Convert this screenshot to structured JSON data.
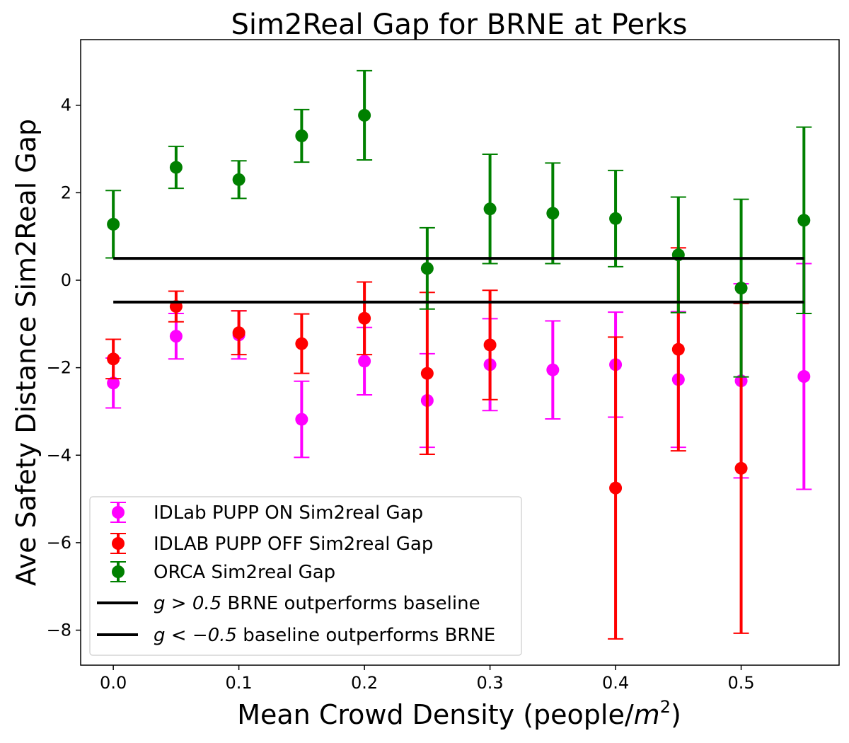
{
  "chart_data": {
    "type": "scatter",
    "title": "Sim2Real Gap for BRNE at Perks",
    "xlabel_main": "Mean Crowd Density (people/",
    "xlabel_unit": "m",
    "xlabel_exp": "2",
    "xlabel_close": ")",
    "ylabel": "Ave Safety Distance Sim2Real Gap",
    "xlim": [
      -0.026,
      0.578
    ],
    "ylim": [
      -8.8,
      5.5
    ],
    "xticks": [
      0.0,
      0.1,
      0.2,
      0.3,
      0.4,
      0.5
    ],
    "xtick_labels": [
      "0.0",
      "0.1",
      "0.2",
      "0.3",
      "0.4",
      "0.5"
    ],
    "yticks": [
      4,
      2,
      0,
      -2,
      -4,
      -6,
      -8
    ],
    "ytick_labels": [
      "4",
      "2",
      "0",
      "−2",
      "−4",
      "−6",
      "−8"
    ],
    "x": [
      0.0,
      0.05,
      0.1,
      0.15,
      0.2,
      0.25,
      0.3,
      0.35,
      0.4,
      0.45,
      0.5,
      0.55
    ],
    "series": [
      {
        "name": "IDLab PUPP ON Sim2real Gap",
        "color": "#ff00ff",
        "y": [
          -2.35,
          -1.28,
          -1.25,
          -3.18,
          -1.85,
          -2.75,
          -1.93,
          -2.05,
          -1.93,
          -2.27,
          -2.3,
          -2.2
        ],
        "yerr": [
          0.57,
          0.52,
          0.55,
          0.87,
          0.77,
          1.07,
          1.05,
          1.12,
          1.2,
          1.55,
          2.22,
          2.58
        ]
      },
      {
        "name": "IDLAB PUPP OFF Sim2real Gap",
        "color": "#ff0000",
        "y": [
          -1.8,
          -0.6,
          -1.2,
          -1.45,
          -0.87,
          -2.13,
          -1.48,
          null,
          -4.75,
          -1.58,
          -4.3,
          null
        ],
        "yerr": [
          0.45,
          0.35,
          0.5,
          0.68,
          0.83,
          1.85,
          1.25,
          null,
          3.45,
          2.32,
          3.77,
          null
        ]
      },
      {
        "name": "ORCA Sim2real Gap",
        "color": "#008000",
        "y": [
          1.28,
          2.58,
          2.3,
          3.3,
          3.77,
          0.27,
          1.63,
          1.53,
          1.41,
          0.58,
          -0.18,
          1.37
        ],
        "yerr": [
          0.77,
          0.48,
          0.43,
          0.6,
          1.02,
          0.93,
          1.25,
          1.15,
          1.1,
          1.32,
          2.03,
          2.13
        ]
      }
    ],
    "hlines": [
      {
        "y": 0.5,
        "xmin": 0.0,
        "xmax": 0.55,
        "color": "#000000",
        "label_math": "g > 0.5",
        "label_text": " BRNE outperforms baseline"
      },
      {
        "y": -0.5,
        "xmin": 0.0,
        "xmax": 0.55,
        "color": "#000000",
        "label_math": "g < −0.5",
        "label_text": " baseline outperforms BRNE"
      }
    ],
    "legend_position": "lower-left",
    "grid": false
  }
}
